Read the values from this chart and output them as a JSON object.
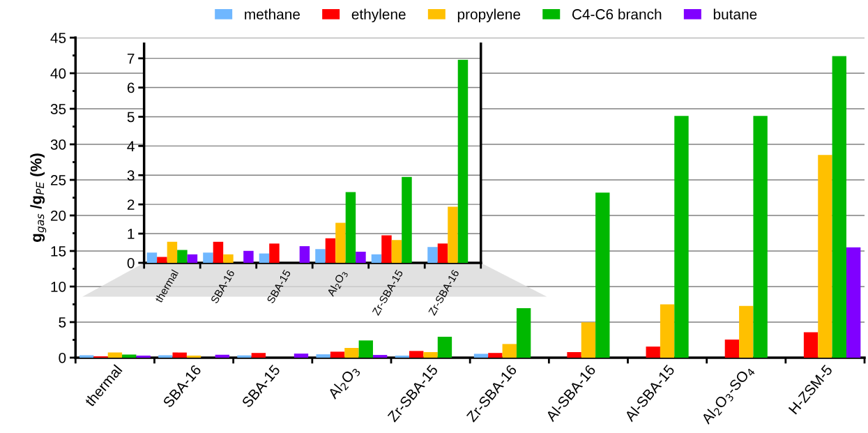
{
  "chart_data": [
    {
      "type": "bar",
      "ylabel": "g$_{gas}$ /g$_{PE}$ (%)",
      "categories": [
        "thermal",
        "SBA-16",
        "SBA-15",
        "Al$_{2}$O$_{3}$",
        "Zr-SBA-15",
        "Zr-SBA-16",
        "Al-SBA-16",
        "Al-SBA-15",
        "Al$_{2}$O$_{3}$-SO$_{4}$",
        "H-ZSM-5"
      ],
      "series": [
        {
          "name": "methane",
          "color": "#6fb7ff",
          "values": [
            0.35,
            0.35,
            0.32,
            0.47,
            0.29,
            0.54,
            null,
            null,
            null,
            null
          ]
        },
        {
          "name": "ethylene",
          "color": "#ff0000",
          "values": [
            0.2,
            0.72,
            0.66,
            0.84,
            0.94,
            0.66,
            0.78,
            1.56,
            2.55,
            3.58
          ]
        },
        {
          "name": "propylene",
          "color": "#ffc000",
          "values": [
            0.72,
            0.29,
            null,
            1.37,
            0.78,
            1.92,
            4.96,
            7.5,
            7.27,
            28.5
          ]
        },
        {
          "name": "C4-C6 branch",
          "color": "#00b800",
          "values": [
            0.44,
            null,
            null,
            2.42,
            2.94,
            6.95,
            23.2,
            34.0,
            34.0,
            42.4
          ]
        },
        {
          "name": "butane",
          "color": "#8000ff",
          "values": [
            0.29,
            0.41,
            0.57,
            0.38,
            null,
            null,
            null,
            null,
            null,
            15.5
          ]
        }
      ],
      "ylim": [
        0,
        45
      ],
      "yticks": [
        0,
        {
          "value": 2.5,
          "label": null
        },
        5,
        {
          "value": 7.5,
          "label": null
        },
        10,
        {
          "value": 12.5,
          "label": null
        },
        15,
        {
          "value": 17.5,
          "label": null
        },
        20,
        {
          "value": 22.5,
          "label": null
        },
        25,
        {
          "value": 27.5,
          "label": null
        },
        30,
        {
          "value": 32.5,
          "label": null
        },
        35,
        {
          "value": 37.5,
          "label": null
        },
        40,
        {
          "value": 42.5,
          "label": null
        },
        45
      ],
      "grid": "y",
      "legend": "top"
    },
    {
      "type": "bar",
      "categories": [
        "thermal",
        "SBA-16",
        "SBA-15",
        "Al$_{2}$O$_{3}$",
        "Zr-SBA-15",
        "Zr-SBA-16"
      ],
      "series": [
        {
          "color": "#6fb7ff",
          "values": [
            0.35,
            0.35,
            0.32,
            0.47,
            0.29,
            0.54
          ]
        },
        {
          "color": "#ff0000",
          "values": [
            0.2,
            0.72,
            0.66,
            0.84,
            0.94,
            0.66
          ]
        },
        {
          "color": "#ffc000",
          "values": [
            0.72,
            0.29,
            null,
            1.37,
            0.78,
            1.92
          ]
        },
        {
          "color": "#00b800",
          "values": [
            0.44,
            null,
            null,
            2.42,
            2.94,
            6.95
          ]
        },
        {
          "color": "#8000ff",
          "values": [
            0.29,
            0.41,
            0.57,
            0.38,
            null,
            null
          ]
        }
      ],
      "ylim": [
        0,
        7.5
      ],
      "yticks": [
        0,
        1,
        2,
        3,
        4,
        5,
        6,
        7
      ],
      "grid": "y"
    }
  ]
}
